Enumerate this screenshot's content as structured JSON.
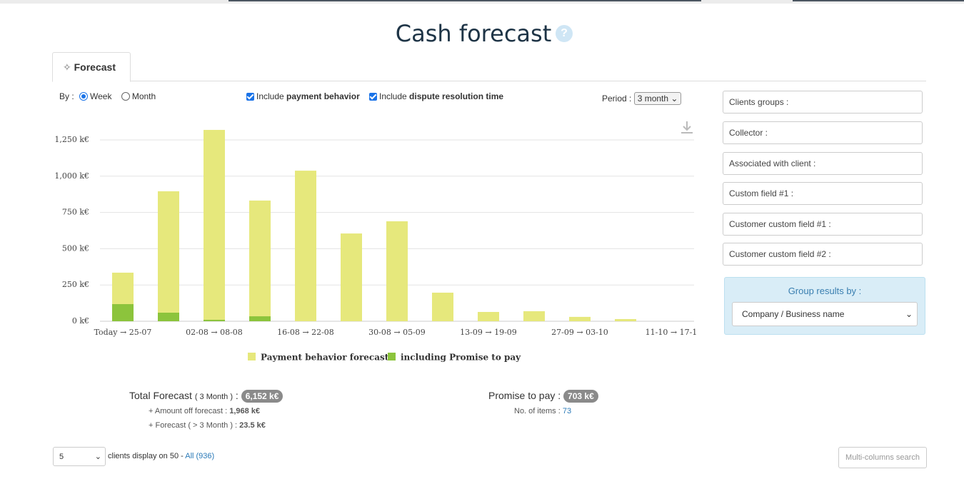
{
  "header": {
    "title": "Cash forecast",
    "help": "?"
  },
  "tab": {
    "label": "Forecast"
  },
  "controls": {
    "by_label": "By :",
    "by_options": [
      "Week",
      "Month"
    ],
    "include_1": {
      "prefix": "Include",
      "bold": "payment behavior"
    },
    "include_2": {
      "prefix": "Include",
      "bold": "dispute resolution time"
    },
    "period_label": "Period :",
    "period_value": "3 month"
  },
  "filters": [
    "Clients groups :",
    "Collector :",
    "Associated with client :",
    "Custom field #1 :",
    "Customer custom field #1 :",
    "Customer custom field #2 :"
  ],
  "group_by": {
    "label": "Group results by :",
    "value": "Company / Business name"
  },
  "chart_data": {
    "type": "bar",
    "categories": [
      "Today → 25-07",
      null,
      "02-08 → 08-08",
      null,
      "16-08 → 22-08",
      null,
      "30-08 → 05-09",
      null,
      "13-09 → 19-09",
      null,
      "27-09 → 03-10",
      null,
      "11-10 → 17-1"
    ],
    "series": [
      {
        "name": "Payment behavior forecast",
        "color": "#e6e87c",
        "values": [
          335,
          896,
          1319,
          832,
          1038,
          605,
          689,
          197,
          64,
          69,
          30,
          15,
          0
        ]
      },
      {
        "name": "including Promise to pay",
        "color": "#8cc43c",
        "values": [
          118,
          59,
          10,
          34,
          0,
          0,
          0,
          0,
          0,
          0,
          0,
          0,
          0
        ]
      }
    ],
    "ylim": [
      0,
      1400
    ],
    "yticks": [
      {
        "value": 0,
        "label": "0 k€"
      },
      {
        "value": 250,
        "label": "250 k€"
      },
      {
        "value": 500,
        "label": "500 k€"
      },
      {
        "value": 750,
        "label": "750 k€"
      },
      {
        "value": 1000,
        "label": "1,000 k€"
      },
      {
        "value": 1250,
        "label": "1,250 k€"
      }
    ],
    "grid": true
  },
  "summary": {
    "total_label": "Total Forecast",
    "total_period": "( 3 Month )",
    "colon": ":",
    "total_value": "6,152 k€",
    "amount_off_label": "+ Amount off forecast :",
    "amount_off_value": "1,968 k€",
    "beyond_label": "+ Forecast ( > 3 Month ) :",
    "beyond_value": "23.5 k€",
    "promise_label": "Promise to pay :",
    "promise_value": "703 k€",
    "items_label": "No. of items :",
    "items_value": "73"
  },
  "footer": {
    "page_size": "5",
    "display_text": "clients display on 50 -",
    "all_link": "All (936)",
    "search_button": "Multi-columns search"
  }
}
